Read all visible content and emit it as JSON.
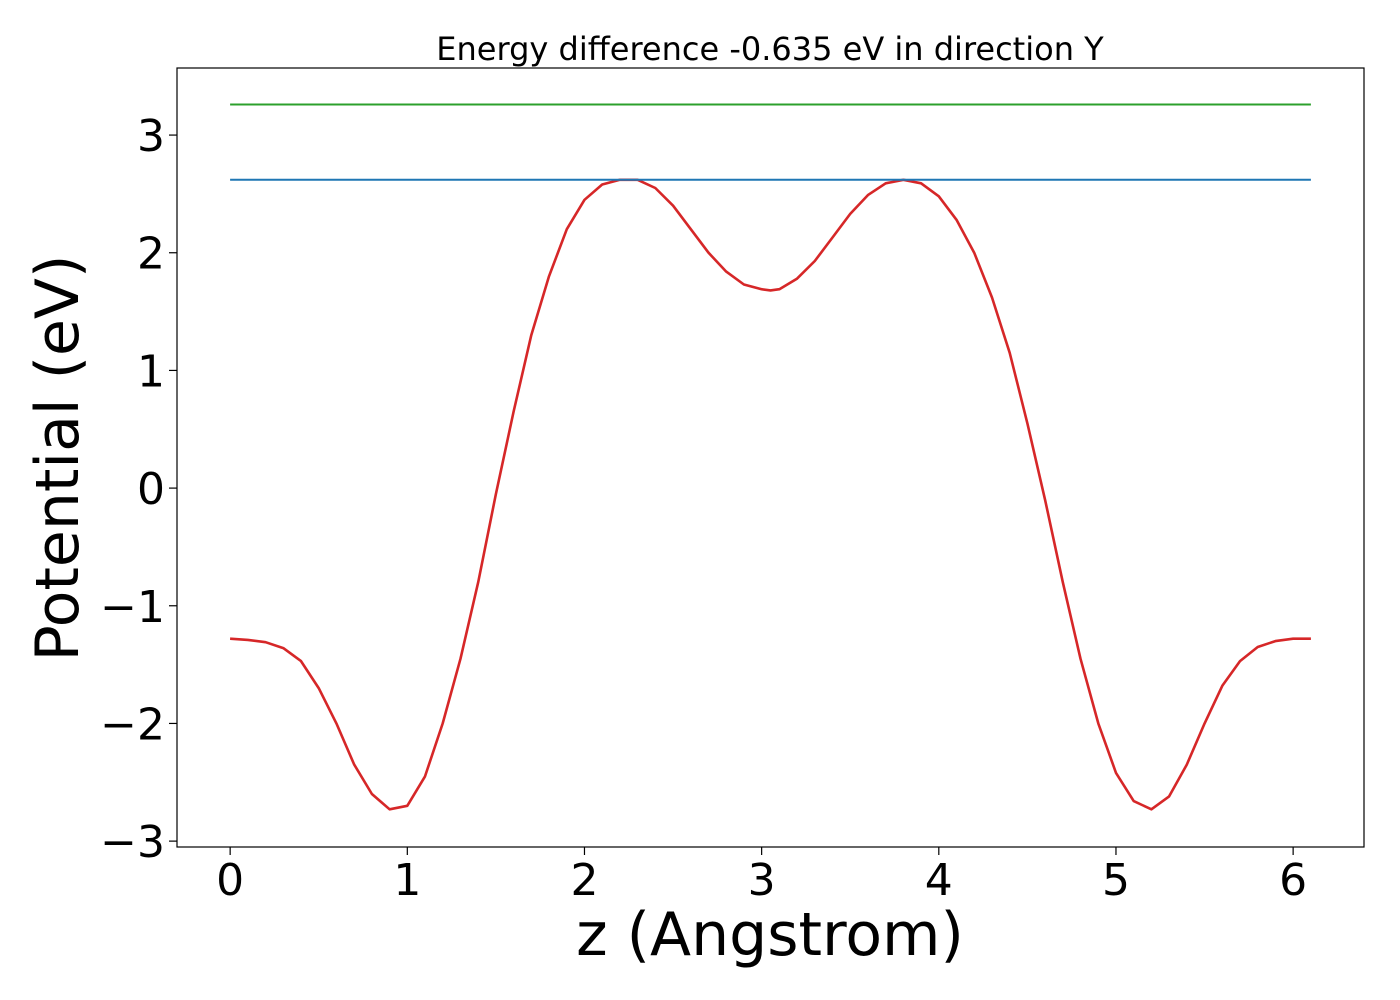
{
  "chart_data": {
    "type": "line",
    "title": "Energy difference -0.635 eV in direction Y",
    "xlabel": "z (Angstrom)",
    "ylabel": "Potential (eV)",
    "xlim": [
      -0.3,
      6.4
    ],
    "ylim": [
      -3.05,
      3.57
    ],
    "xticks": [
      0,
      1,
      2,
      3,
      4,
      5,
      6
    ],
    "yticks": [
      -3,
      -2,
      -1,
      0,
      1,
      2,
      3
    ],
    "grid": false,
    "legend": "none",
    "series": [
      {
        "color": "#d62728",
        "x": [
          0,
          0.1,
          0.2,
          0.3,
          0.4,
          0.5,
          0.6,
          0.7,
          0.8,
          0.9,
          1.0,
          1.1,
          1.2,
          1.3,
          1.4,
          1.5,
          1.6,
          1.7,
          1.8,
          1.9,
          2.0,
          2.1,
          2.2,
          2.3,
          2.4,
          2.5,
          2.6,
          2.7,
          2.8,
          2.9,
          3.0,
          3.05,
          3.1,
          3.2,
          3.3,
          3.4,
          3.5,
          3.6,
          3.7,
          3.8,
          3.9,
          4.0,
          4.1,
          4.2,
          4.3,
          4.4,
          4.5,
          4.6,
          4.7,
          4.8,
          4.9,
          5.0,
          5.1,
          5.2,
          5.3,
          5.4,
          5.5,
          5.6,
          5.7,
          5.8,
          5.9,
          6.0,
          6.1
        ],
        "y": [
          -1.28,
          -1.29,
          -1.31,
          -1.36,
          -1.47,
          -1.7,
          -2.0,
          -2.35,
          -2.6,
          -2.73,
          -2.7,
          -2.45,
          -2.0,
          -1.45,
          -0.8,
          -0.05,
          0.65,
          1.3,
          1.8,
          2.2,
          2.45,
          2.58,
          2.62,
          2.62,
          2.55,
          2.4,
          2.2,
          2.0,
          1.84,
          1.73,
          1.69,
          1.68,
          1.69,
          1.78,
          1.93,
          2.13,
          2.33,
          2.49,
          2.59,
          2.62,
          2.59,
          2.48,
          2.28,
          2.0,
          1.62,
          1.15,
          0.55,
          -0.1,
          -0.8,
          -1.45,
          -2.0,
          -2.42,
          -2.66,
          -2.73,
          -2.62,
          -2.35,
          -2.0,
          -1.68,
          -1.47,
          -1.35,
          -1.3,
          -1.28,
          -1.28
        ]
      },
      {
        "color": "#1f77b4",
        "x": [
          0,
          6.1
        ],
        "y": [
          2.62,
          2.62
        ]
      },
      {
        "color": "#2ca02c",
        "x": [
          0,
          6.1
        ],
        "y": [
          3.26,
          3.26
        ]
      }
    ]
  }
}
